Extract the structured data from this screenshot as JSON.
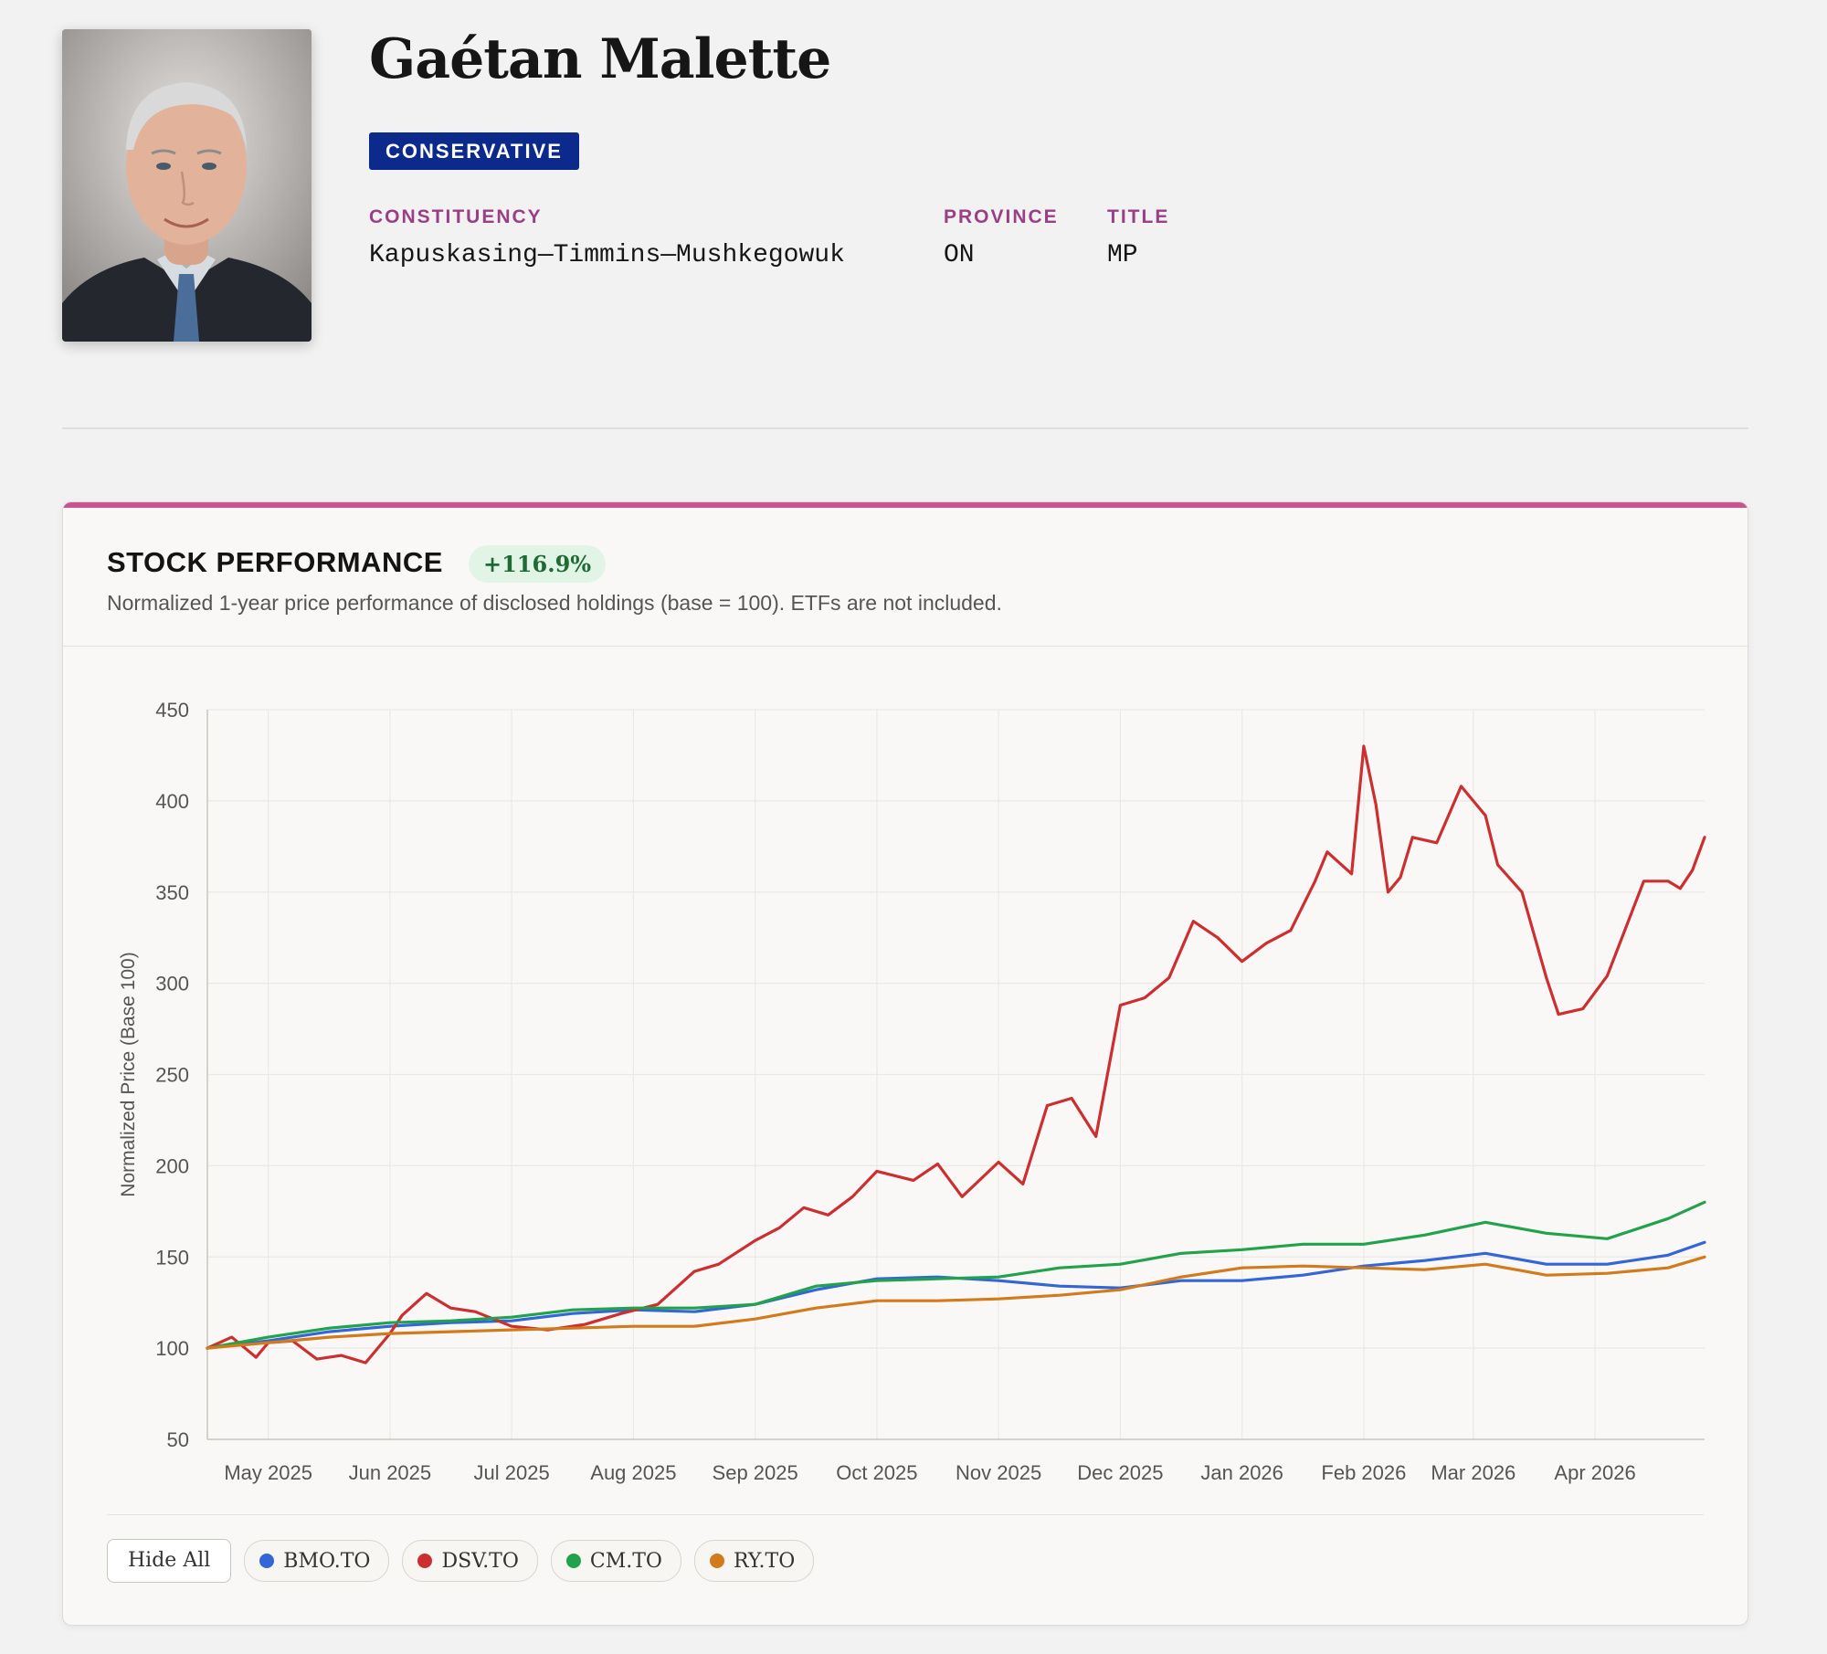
{
  "profile": {
    "name": "Gaétan Malette",
    "party": "CONSERVATIVE",
    "fields": [
      {
        "label": "CONSTITUENCY",
        "value": "Kapuskasing—Timmins—Mushkegowuk"
      },
      {
        "label": "PROVINCE",
        "value": "ON"
      },
      {
        "label": "TITLE",
        "value": "MP"
      }
    ]
  },
  "colors": {
    "party": "#0b2a8c",
    "accent": "#c9538f",
    "label": "#9a3f86",
    "gain_bg": "#e2f4e6",
    "gain_text": "#1f6b36"
  },
  "card": {
    "title": "STOCK PERFORMANCE",
    "performance": "+116.9%",
    "subtitle": "Normalized 1-year price performance of disclosed holdings (base = 100). ETFs are not included."
  },
  "legend": {
    "hide_all_label": "Hide All"
  },
  "chart_data": {
    "type": "line",
    "title": "",
    "xlabel": "",
    "ylabel": "Normalized Price (Base 100)",
    "ylim": [
      50,
      450
    ],
    "yticks": [
      50,
      100,
      150,
      200,
      250,
      300,
      350,
      400,
      450
    ],
    "xlim": [
      -0.5,
      11.8
    ],
    "x_ticks": [
      {
        "label": "May 2025",
        "x": 0
      },
      {
        "label": "Jun 2025",
        "x": 1
      },
      {
        "label": "Jul 2025",
        "x": 2
      },
      {
        "label": "Aug 2025",
        "x": 3
      },
      {
        "label": "Sep 2025",
        "x": 4
      },
      {
        "label": "Oct 2025",
        "x": 5
      },
      {
        "label": "Nov 2025",
        "x": 6
      },
      {
        "label": "Dec 2025",
        "x": 7
      },
      {
        "label": "Jan 2026",
        "x": 8
      },
      {
        "label": "Feb 2026",
        "x": 9
      },
      {
        "label": "Mar 2026",
        "x": 9.9
      },
      {
        "label": "Apr 2026",
        "x": 10.9
      }
    ],
    "grid": true,
    "series": [
      {
        "name": "BMO.TO",
        "color": "#3366d6",
        "x": [
          -0.5,
          0,
          0.5,
          1,
          1.5,
          2,
          2.5,
          3,
          3.5,
          4,
          4.5,
          5,
          5.5,
          6,
          6.5,
          7,
          7.5,
          8,
          8.5,
          9,
          9.5,
          10,
          10.5,
          11,
          11.5,
          11.8
        ],
        "y": [
          100,
          104,
          109,
          112,
          114,
          115,
          119,
          121,
          120,
          124,
          132,
          138,
          139,
          137,
          134,
          133,
          137,
          137,
          140,
          145,
          148,
          152,
          146,
          146,
          151,
          158
        ]
      },
      {
        "name": "DSV.TO",
        "color": "#cc2f2f",
        "x": [
          -0.5,
          -0.3,
          -0.1,
          0,
          0.2,
          0.4,
          0.6,
          0.8,
          1,
          1.1,
          1.3,
          1.5,
          1.7,
          2,
          2.3,
          2.6,
          2.9,
          3.2,
          3.5,
          3.7,
          4,
          4.2,
          4.4,
          4.6,
          4.8,
          5,
          5.3,
          5.5,
          5.7,
          6,
          6.2,
          6.4,
          6.6,
          6.8,
          7,
          7.2,
          7.4,
          7.6,
          7.8,
          8,
          8.2,
          8.4,
          8.6,
          8.7,
          8.9,
          9,
          9.1,
          9.2,
          9.3,
          9.4,
          9.6,
          9.8,
          10,
          10.1,
          10.3,
          10.5,
          10.6,
          10.8,
          11,
          11.3,
          11.5,
          11.6,
          11.7,
          11.8
        ],
        "y": [
          100,
          106,
          95,
          103,
          104,
          94,
          96,
          92,
          108,
          118,
          130,
          122,
          120,
          112,
          110,
          113,
          119,
          124,
          142,
          146,
          159,
          166,
          177,
          173,
          183,
          197,
          192,
          201,
          183,
          202,
          190,
          233,
          237,
          216,
          288,
          292,
          303,
          334,
          325,
          312,
          322,
          329,
          356,
          372,
          360,
          430,
          398,
          350,
          358,
          380,
          377,
          408,
          392,
          365,
          350,
          303,
          283,
          286,
          304,
          356,
          356,
          352,
          362,
          380
        ]
      },
      {
        "name": "CM.TO",
        "color": "#23a24d",
        "x": [
          -0.5,
          0,
          0.5,
          1,
          1.5,
          2,
          2.5,
          3,
          3.5,
          4,
          4.5,
          5,
          5.5,
          6,
          6.5,
          7,
          7.5,
          8,
          8.5,
          9,
          9.5,
          10,
          10.5,
          11,
          11.5,
          11.8
        ],
        "y": [
          100,
          106,
          111,
          114,
          115,
          117,
          121,
          122,
          122,
          124,
          134,
          137,
          138,
          139,
          144,
          146,
          152,
          154,
          157,
          157,
          162,
          169,
          163,
          160,
          171,
          180
        ]
      },
      {
        "name": "RY.TO",
        "color": "#d27b1d",
        "x": [
          -0.5,
          0,
          0.5,
          1,
          1.5,
          2,
          2.5,
          3,
          3.5,
          4,
          4.5,
          5,
          5.5,
          6,
          6.5,
          7,
          7.5,
          8,
          8.5,
          9,
          9.5,
          10,
          10.5,
          11,
          11.5,
          11.8
        ],
        "y": [
          100,
          103,
          106,
          108,
          109,
          110,
          111,
          112,
          112,
          116,
          122,
          126,
          126,
          127,
          129,
          132,
          139,
          144,
          145,
          144,
          143,
          146,
          140,
          141,
          144,
          150
        ]
      }
    ]
  }
}
